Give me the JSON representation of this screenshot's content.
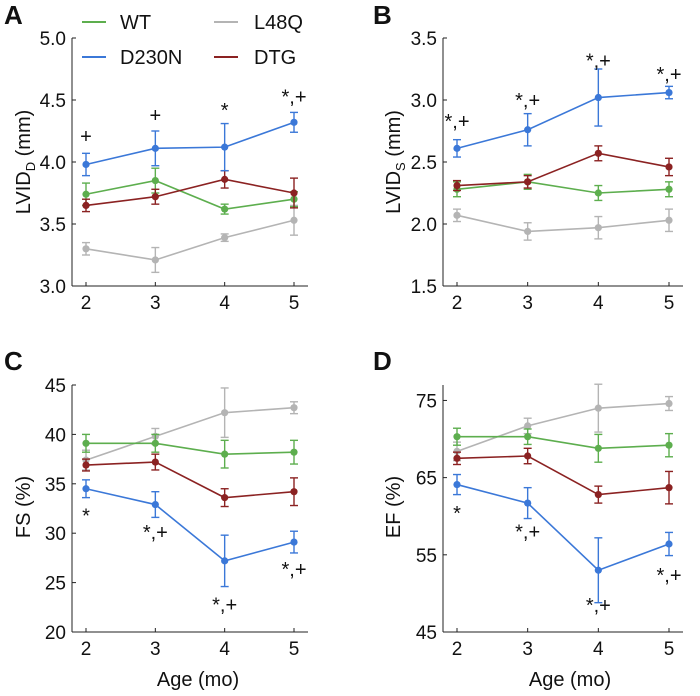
{
  "colors": {
    "WT": "#5dae4e",
    "D230N": "#3b78d8",
    "L48Q": "#b4b4b4",
    "DTG": "#8b2222"
  },
  "legend": [
    {
      "name": "WT",
      "color": "#5dae4e"
    },
    {
      "name": "D230N",
      "color": "#3b78d8"
    },
    {
      "name": "L48Q",
      "color": "#b4b4b4"
    },
    {
      "name": "DTG",
      "color": "#8b2222"
    }
  ],
  "chart_data": [
    {
      "panel": "A",
      "type": "line",
      "ylabel_main": "LVID",
      "ylabel_sub": "D",
      "ylabel_unit": " (mm)",
      "xlabel": "",
      "x": [
        2,
        3,
        4,
        5
      ],
      "xticks": [
        "2",
        "3",
        "4",
        "5"
      ],
      "ylim": [
        3.0,
        5.0
      ],
      "yticks": [
        "3.0",
        "3.5",
        "4.0",
        "4.5",
        "5.0"
      ],
      "series": [
        {
          "name": "WT",
          "values": [
            3.74,
            3.85,
            3.62,
            3.7
          ],
          "err": [
            0.09,
            0.1,
            0.04,
            0.06
          ]
        },
        {
          "name": "D230N",
          "values": [
            3.98,
            4.11,
            4.12,
            4.32
          ],
          "err": [
            0.09,
            0.14,
            0.19,
            0.08
          ]
        },
        {
          "name": "L48Q",
          "values": [
            3.3,
            3.21,
            3.39,
            3.53
          ],
          "err": [
            0.05,
            0.1,
            0.03,
            0.12
          ]
        },
        {
          "name": "DTG",
          "values": [
            3.65,
            3.72,
            3.86,
            3.75
          ],
          "err": [
            0.05,
            0.06,
            0.07,
            0.12
          ]
        }
      ],
      "annotations": [
        {
          "x": 2,
          "y": 4.21,
          "text": "+"
        },
        {
          "x": 3,
          "y": 4.38,
          "text": "+"
        },
        {
          "x": 4,
          "y": 4.42,
          "text": "*"
        },
        {
          "x": 5,
          "y": 4.53,
          "text": "*,+"
        }
      ]
    },
    {
      "panel": "B",
      "type": "line",
      "ylabel_main": "LVID",
      "ylabel_sub": "S",
      "ylabel_unit": " (mm)",
      "xlabel": "",
      "x": [
        2,
        3,
        4,
        5
      ],
      "xticks": [
        "2",
        "3",
        "4",
        "5"
      ],
      "ylim": [
        1.5,
        3.5
      ],
      "yticks": [
        "1.5",
        "2.0",
        "2.5",
        "3.0",
        "3.5"
      ],
      "series": [
        {
          "name": "WT",
          "values": [
            2.28,
            2.34,
            2.25,
            2.28
          ],
          "err": [
            0.06,
            0.06,
            0.06,
            0.06
          ]
        },
        {
          "name": "D230N",
          "values": [
            2.61,
            2.76,
            3.02,
            3.06
          ],
          "err": [
            0.07,
            0.13,
            0.23,
            0.05
          ]
        },
        {
          "name": "L48Q",
          "values": [
            2.07,
            1.94,
            1.97,
            2.03
          ],
          "err": [
            0.05,
            0.07,
            0.09,
            0.09
          ]
        },
        {
          "name": "DTG",
          "values": [
            2.31,
            2.34,
            2.57,
            2.46
          ],
          "err": [
            0.04,
            0.05,
            0.06,
            0.07
          ]
        }
      ],
      "annotations": [
        {
          "x": 2,
          "y": 2.83,
          "text": "*,+"
        },
        {
          "x": 3,
          "y": 3.0,
          "text": "*,+"
        },
        {
          "x": 4,
          "y": 3.32,
          "text": "*,+"
        },
        {
          "x": 5,
          "y": 3.21,
          "text": "*,+"
        }
      ]
    },
    {
      "panel": "C",
      "type": "line",
      "ylabel_main": "FS (%)",
      "ylabel_sub": "",
      "ylabel_unit": "",
      "xlabel": "Age (mo)",
      "x": [
        2,
        3,
        4,
        5
      ],
      "xticks": [
        "2",
        "3",
        "4",
        "5"
      ],
      "ylim": [
        20,
        45
      ],
      "yticks": [
        "20",
        "25",
        "30",
        "35",
        "40",
        "45"
      ],
      "series": [
        {
          "name": "WT",
          "values": [
            39.1,
            39.1,
            38.0,
            38.2
          ],
          "err": [
            0.9,
            0.9,
            1.4,
            1.2
          ]
        },
        {
          "name": "D230N",
          "values": [
            34.5,
            32.9,
            27.2,
            29.1
          ],
          "err": [
            0.9,
            1.3,
            2.6,
            1.1
          ]
        },
        {
          "name": "L48Q",
          "values": [
            37.4,
            39.8,
            42.2,
            42.7
          ],
          "err": [
            1.0,
            0.8,
            2.5,
            0.6
          ]
        },
        {
          "name": "DTG",
          "values": [
            36.9,
            37.2,
            33.6,
            34.2
          ],
          "err": [
            0.6,
            0.8,
            0.9,
            1.4
          ]
        }
      ],
      "annotations": [
        {
          "x": 2,
          "y": 31.8,
          "text": "*"
        },
        {
          "x": 3,
          "y": 30.1,
          "text": "*,+"
        },
        {
          "x": 4,
          "y": 22.8,
          "text": "*,+"
        },
        {
          "x": 5,
          "y": 26.4,
          "text": "*,+"
        }
      ]
    },
    {
      "panel": "D",
      "type": "line",
      "ylabel_main": "EF (%)",
      "ylabel_sub": "",
      "ylabel_unit": "",
      "xlabel": "Age (mo)",
      "x": [
        2,
        3,
        4,
        5
      ],
      "xticks": [
        "2",
        "3",
        "4",
        "5"
      ],
      "ylim": [
        45,
        77
      ],
      "yticks": [
        "45",
        "55",
        "65",
        "75"
      ],
      "series": [
        {
          "name": "WT",
          "values": [
            70.3,
            70.3,
            68.8,
            69.2
          ],
          "err": [
            1.1,
            1.0,
            1.8,
            1.5
          ]
        },
        {
          "name": "D230N",
          "values": [
            64.1,
            61.7,
            53.0,
            56.4
          ],
          "err": [
            1.3,
            2.0,
            4.2,
            1.5
          ]
        },
        {
          "name": "L48Q",
          "values": [
            68.4,
            71.7,
            74.0,
            74.6
          ],
          "err": [
            1.2,
            1.0,
            3.1,
            0.9
          ]
        },
        {
          "name": "DTG",
          "values": [
            67.5,
            67.8,
            62.8,
            63.7
          ],
          "err": [
            0.8,
            1.0,
            1.1,
            2.1
          ]
        }
      ],
      "annotations": [
        {
          "x": 2,
          "y": 60.4,
          "text": "*"
        },
        {
          "x": 3,
          "y": 58.0,
          "text": "*,+"
        },
        {
          "x": 4,
          "y": 48.5,
          "text": "*,+"
        },
        {
          "x": 5,
          "y": 52.4,
          "text": "*,+"
        }
      ]
    }
  ]
}
